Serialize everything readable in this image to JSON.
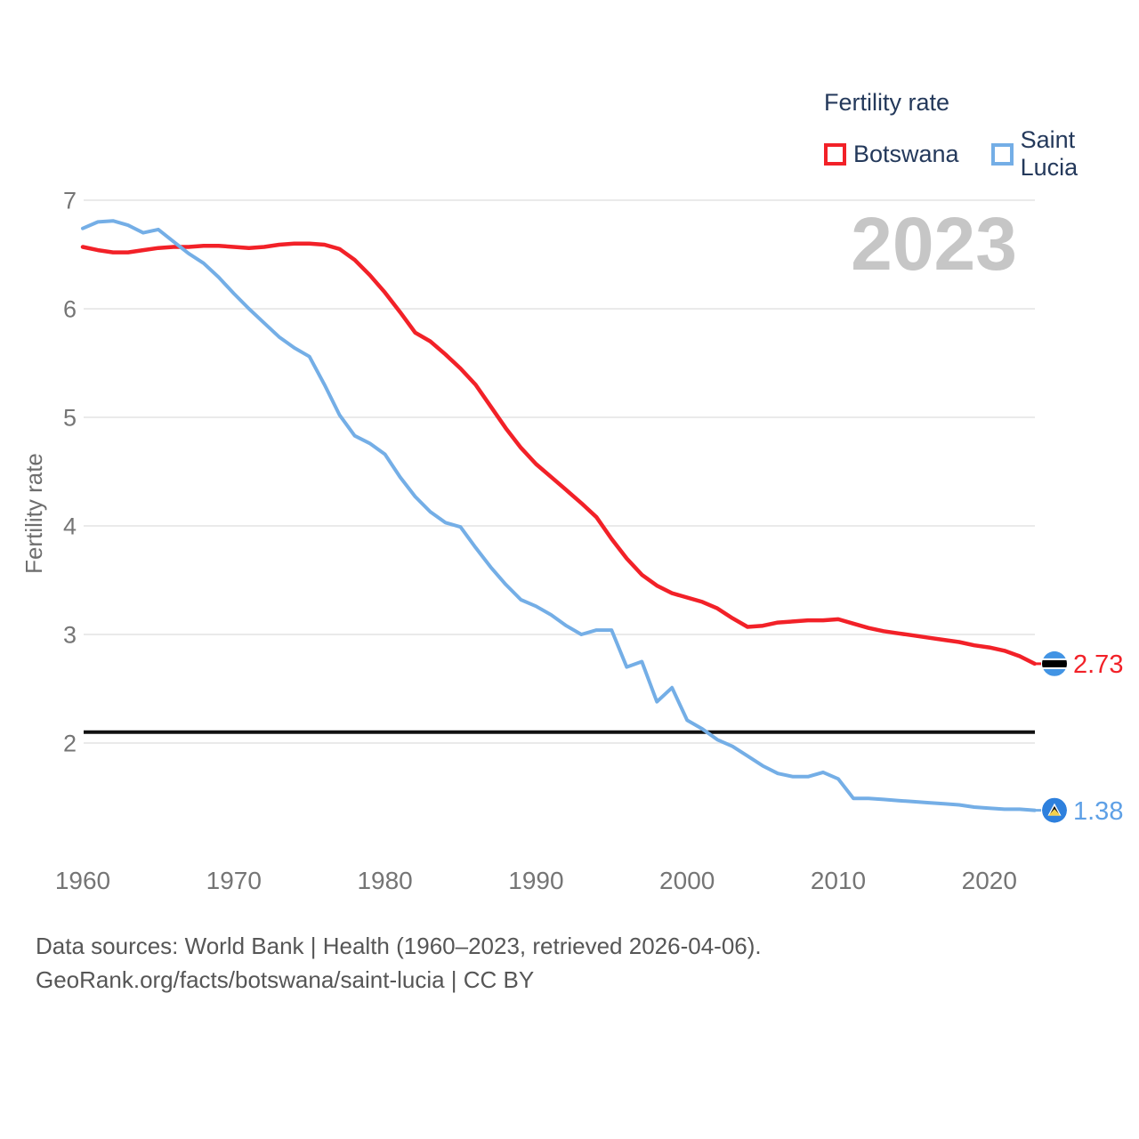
{
  "watermark": "2023",
  "legend": {
    "title": "Fertility rate"
  },
  "chart_data": {
    "type": "line",
    "title": "Fertility rate",
    "xlabel": "",
    "ylabel": "Fertility rate",
    "x_ticks": [
      "1960",
      "1970",
      "1980",
      "1990",
      "2000",
      "2010",
      "2020"
    ],
    "y_ticks": [
      "7",
      "6",
      "5",
      "4",
      "3",
      "2"
    ],
    "xlim": [
      1960,
      2023
    ],
    "ylim": [
      1.2,
      7.0
    ],
    "grid": "horizontal-only",
    "legend_position": "top-right",
    "watermark": "2023",
    "reference_line": {
      "value": 2.1,
      "meaning": "replacement-level fertility",
      "color": "#111111"
    },
    "x": [
      1960,
      1961,
      1962,
      1963,
      1964,
      1965,
      1966,
      1967,
      1968,
      1969,
      1970,
      1971,
      1972,
      1973,
      1974,
      1975,
      1976,
      1977,
      1978,
      1979,
      1980,
      1981,
      1982,
      1983,
      1984,
      1985,
      1986,
      1987,
      1988,
      1989,
      1990,
      1991,
      1992,
      1993,
      1994,
      1995,
      1996,
      1997,
      1998,
      1999,
      2000,
      2001,
      2002,
      2003,
      2004,
      2005,
      2006,
      2007,
      2008,
      2009,
      2010,
      2011,
      2012,
      2013,
      2014,
      2015,
      2016,
      2017,
      2018,
      2019,
      2020,
      2021,
      2022,
      2023
    ],
    "series": [
      {
        "name": "Botswana",
        "color": "#f22128",
        "end_label": "2.73",
        "flag": "botswana-flag",
        "flag_colors": {
          "field": "#4294e4",
          "band": "#000000",
          "band_edge": "#ffffff"
        },
        "values": [
          6.57,
          6.54,
          6.52,
          6.52,
          6.54,
          6.56,
          6.57,
          6.57,
          6.58,
          6.58,
          6.57,
          6.56,
          6.57,
          6.59,
          6.6,
          6.6,
          6.59,
          6.55,
          6.45,
          6.31,
          6.15,
          5.97,
          5.78,
          5.7,
          5.58,
          5.45,
          5.3,
          5.1,
          4.9,
          4.72,
          4.57,
          4.45,
          4.33,
          4.21,
          4.08,
          3.88,
          3.7,
          3.55,
          3.45,
          3.38,
          3.34,
          3.3,
          3.24,
          3.15,
          3.07,
          3.08,
          3.11,
          3.12,
          3.13,
          3.13,
          3.14,
          3.1,
          3.06,
          3.03,
          3.01,
          2.99,
          2.97,
          2.95,
          2.93,
          2.9,
          2.88,
          2.85,
          2.8,
          2.73
        ]
      },
      {
        "name": "Saint Lucia",
        "color": "#74aee6",
        "end_label": "1.38",
        "flag": "saint-lucia-flag",
        "flag_colors": {
          "field": "#2e80dd",
          "triangle_white": "#ffffff",
          "triangle_black": "#111111",
          "triangle_yellow": "#f5d04a"
        },
        "values": [
          6.74,
          6.8,
          6.81,
          6.77,
          6.7,
          6.73,
          6.62,
          6.51,
          6.42,
          6.29,
          6.14,
          6.0,
          5.87,
          5.74,
          5.64,
          5.56,
          5.3,
          5.02,
          4.83,
          4.76,
          4.66,
          4.45,
          4.27,
          4.13,
          4.03,
          3.99,
          3.8,
          3.62,
          3.46,
          3.32,
          3.26,
          3.18,
          3.08,
          3.0,
          3.04,
          3.04,
          2.7,
          2.75,
          2.38,
          2.51,
          2.21,
          2.13,
          2.03,
          1.97,
          1.88,
          1.79,
          1.72,
          1.69,
          1.69,
          1.73,
          1.67,
          1.49,
          1.49,
          1.48,
          1.47,
          1.46,
          1.45,
          1.44,
          1.43,
          1.41,
          1.4,
          1.39,
          1.39,
          1.38
        ]
      }
    ]
  },
  "colors": {
    "axis_text": "#757575",
    "grid": "#eaeaea",
    "watermark": "#c6c6c6",
    "legend_text": "#24395b",
    "footer_text": "#565656",
    "end_value_botswana": "#f22128",
    "end_value_saint_lucia": "#5ea0e6"
  },
  "footer": {
    "line1": "Data sources: World Bank | Health (1960–2023, retrieved 2026-04-06).",
    "line2": "GeoRank.org/facts/botswana/saint-lucia | CC BY"
  }
}
